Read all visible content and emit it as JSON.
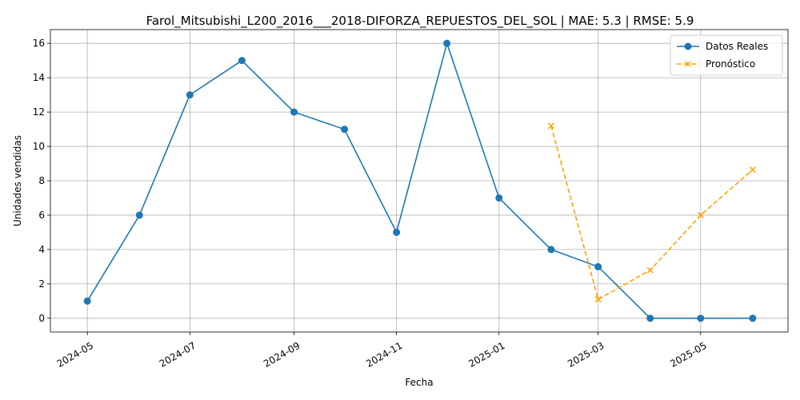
{
  "chart_data": {
    "type": "line",
    "title": "Farol_Mitsubishi_L200_2016___2018-DIFORZA_REPUESTOS_DEL_SOL | MAE: 5.3 | RMSE: 5.9",
    "xlabel": "Fecha",
    "ylabel": "Unidades vendidas",
    "xlim": [
      "2024-04-09",
      "2025-06-22"
    ],
    "ylim": [
      -0.8,
      16.8
    ],
    "x_ticks": [
      "2024-05",
      "2024-07",
      "2024-09",
      "2024-11",
      "2025-01",
      "2025-03",
      "2025-05"
    ],
    "y_ticks": [
      0,
      2,
      4,
      6,
      8,
      10,
      12,
      14,
      16
    ],
    "grid": true,
    "legend_position": "top-right",
    "series": [
      {
        "name": "Datos Reales",
        "color": "#1f77b4",
        "marker": "circle",
        "line_style": "solid",
        "x": [
          "2024-05-01",
          "2024-06-01",
          "2024-07-01",
          "2024-08-01",
          "2024-09-01",
          "2024-10-01",
          "2024-11-01",
          "2024-12-01",
          "2025-01-01",
          "2025-02-01",
          "2025-03-01",
          "2025-04-01",
          "2025-05-01",
          "2025-06-01"
        ],
        "values": [
          1,
          6,
          13,
          15,
          12,
          11,
          5,
          16,
          7,
          4,
          3,
          0,
          0,
          0
        ]
      },
      {
        "name": "Pronóstico",
        "color": "#ffa500",
        "marker": "x",
        "line_style": "dashed",
        "x": [
          "2025-02-01",
          "2025-03-01",
          "2025-04-01",
          "2025-05-01",
          "2025-06-01"
        ],
        "values": [
          11.2,
          1.1,
          2.8,
          6.0,
          8.65
        ]
      }
    ]
  }
}
